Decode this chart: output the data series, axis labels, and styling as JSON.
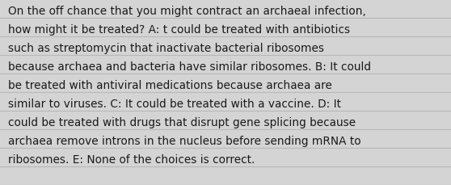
{
  "lines": [
    "On the off chance that you might contract an archaeal infection,",
    "how might it be treated? A: t could be treated with antibiotics",
    "such as streptomycin that inactivate bacterial ribosomes",
    "because archaea and bacteria have similar ribosomes. B: It could",
    "be treated with antiviral medications because archaea are",
    "similar to viruses. C: It could be treated with a vaccine. D: It",
    "could be treated with drugs that disrupt gene splicing because",
    "archaea remove introns in the nucleus before sending mRNA to",
    "ribosomes. E: None of the choices is correct."
  ],
  "background_color": "#d4d4d4",
  "text_color": "#1a1a1a",
  "font_size": 9.8,
  "line_color": "#b8b8b8",
  "box_color": "#e4e4e4",
  "fig_width": 5.58,
  "fig_height": 2.3,
  "dpi": 100
}
